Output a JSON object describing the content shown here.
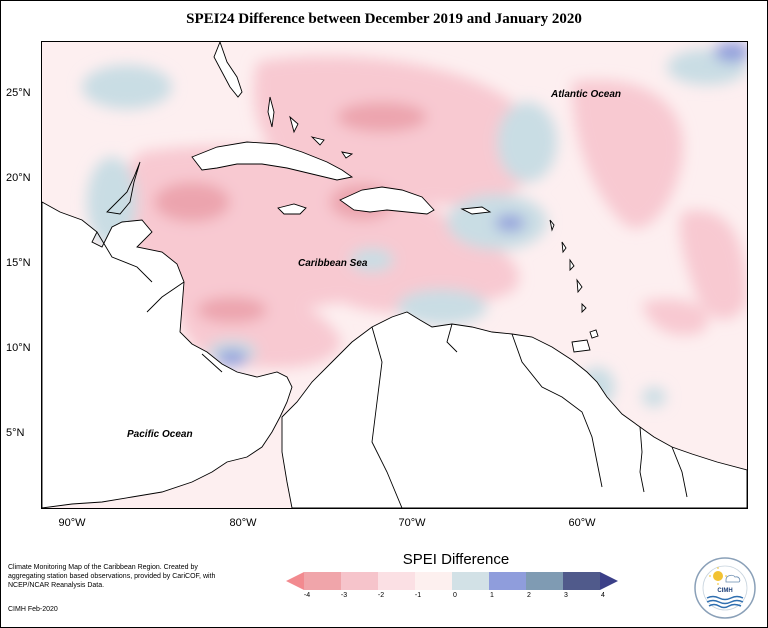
{
  "title": "SPEI24 Difference between December 2019 and January 2020",
  "lat_labels": [
    "25°N",
    "20°N",
    "15°N",
    "10°N",
    "5°N"
  ],
  "lon_labels": [
    "90°W",
    "80°W",
    "70°W",
    "60°W"
  ],
  "ocean_labels": {
    "atlantic": "Atlantic Ocean",
    "caribbean": "Caribbean Sea",
    "pacific": "Pacific Ocean"
  },
  "credit_text": "Climate Monitoring Map of the Caribbean Region. Created by aggregating station based observations, provided by CariCOF, with NCEP/NCAR Reanalysis Data.",
  "credit_date": "CIMH Feb-2020",
  "legend": {
    "title": "SPEI Difference",
    "ticks": [
      "-4",
      "-3",
      "-2",
      "-1",
      "0",
      "1",
      "2",
      "3",
      "4"
    ],
    "colors": [
      "#f28a8f",
      "#f0a5aa",
      "#f6c4cb",
      "#fbe0e4",
      "#fdf0ef",
      "#d2e1e6",
      "#8f9ddc",
      "#7f9bb3",
      "#505a8b",
      "#3b3f88"
    ]
  },
  "logo": {
    "label": "CIMH",
    "icon": "cimh-logo-icon"
  }
}
